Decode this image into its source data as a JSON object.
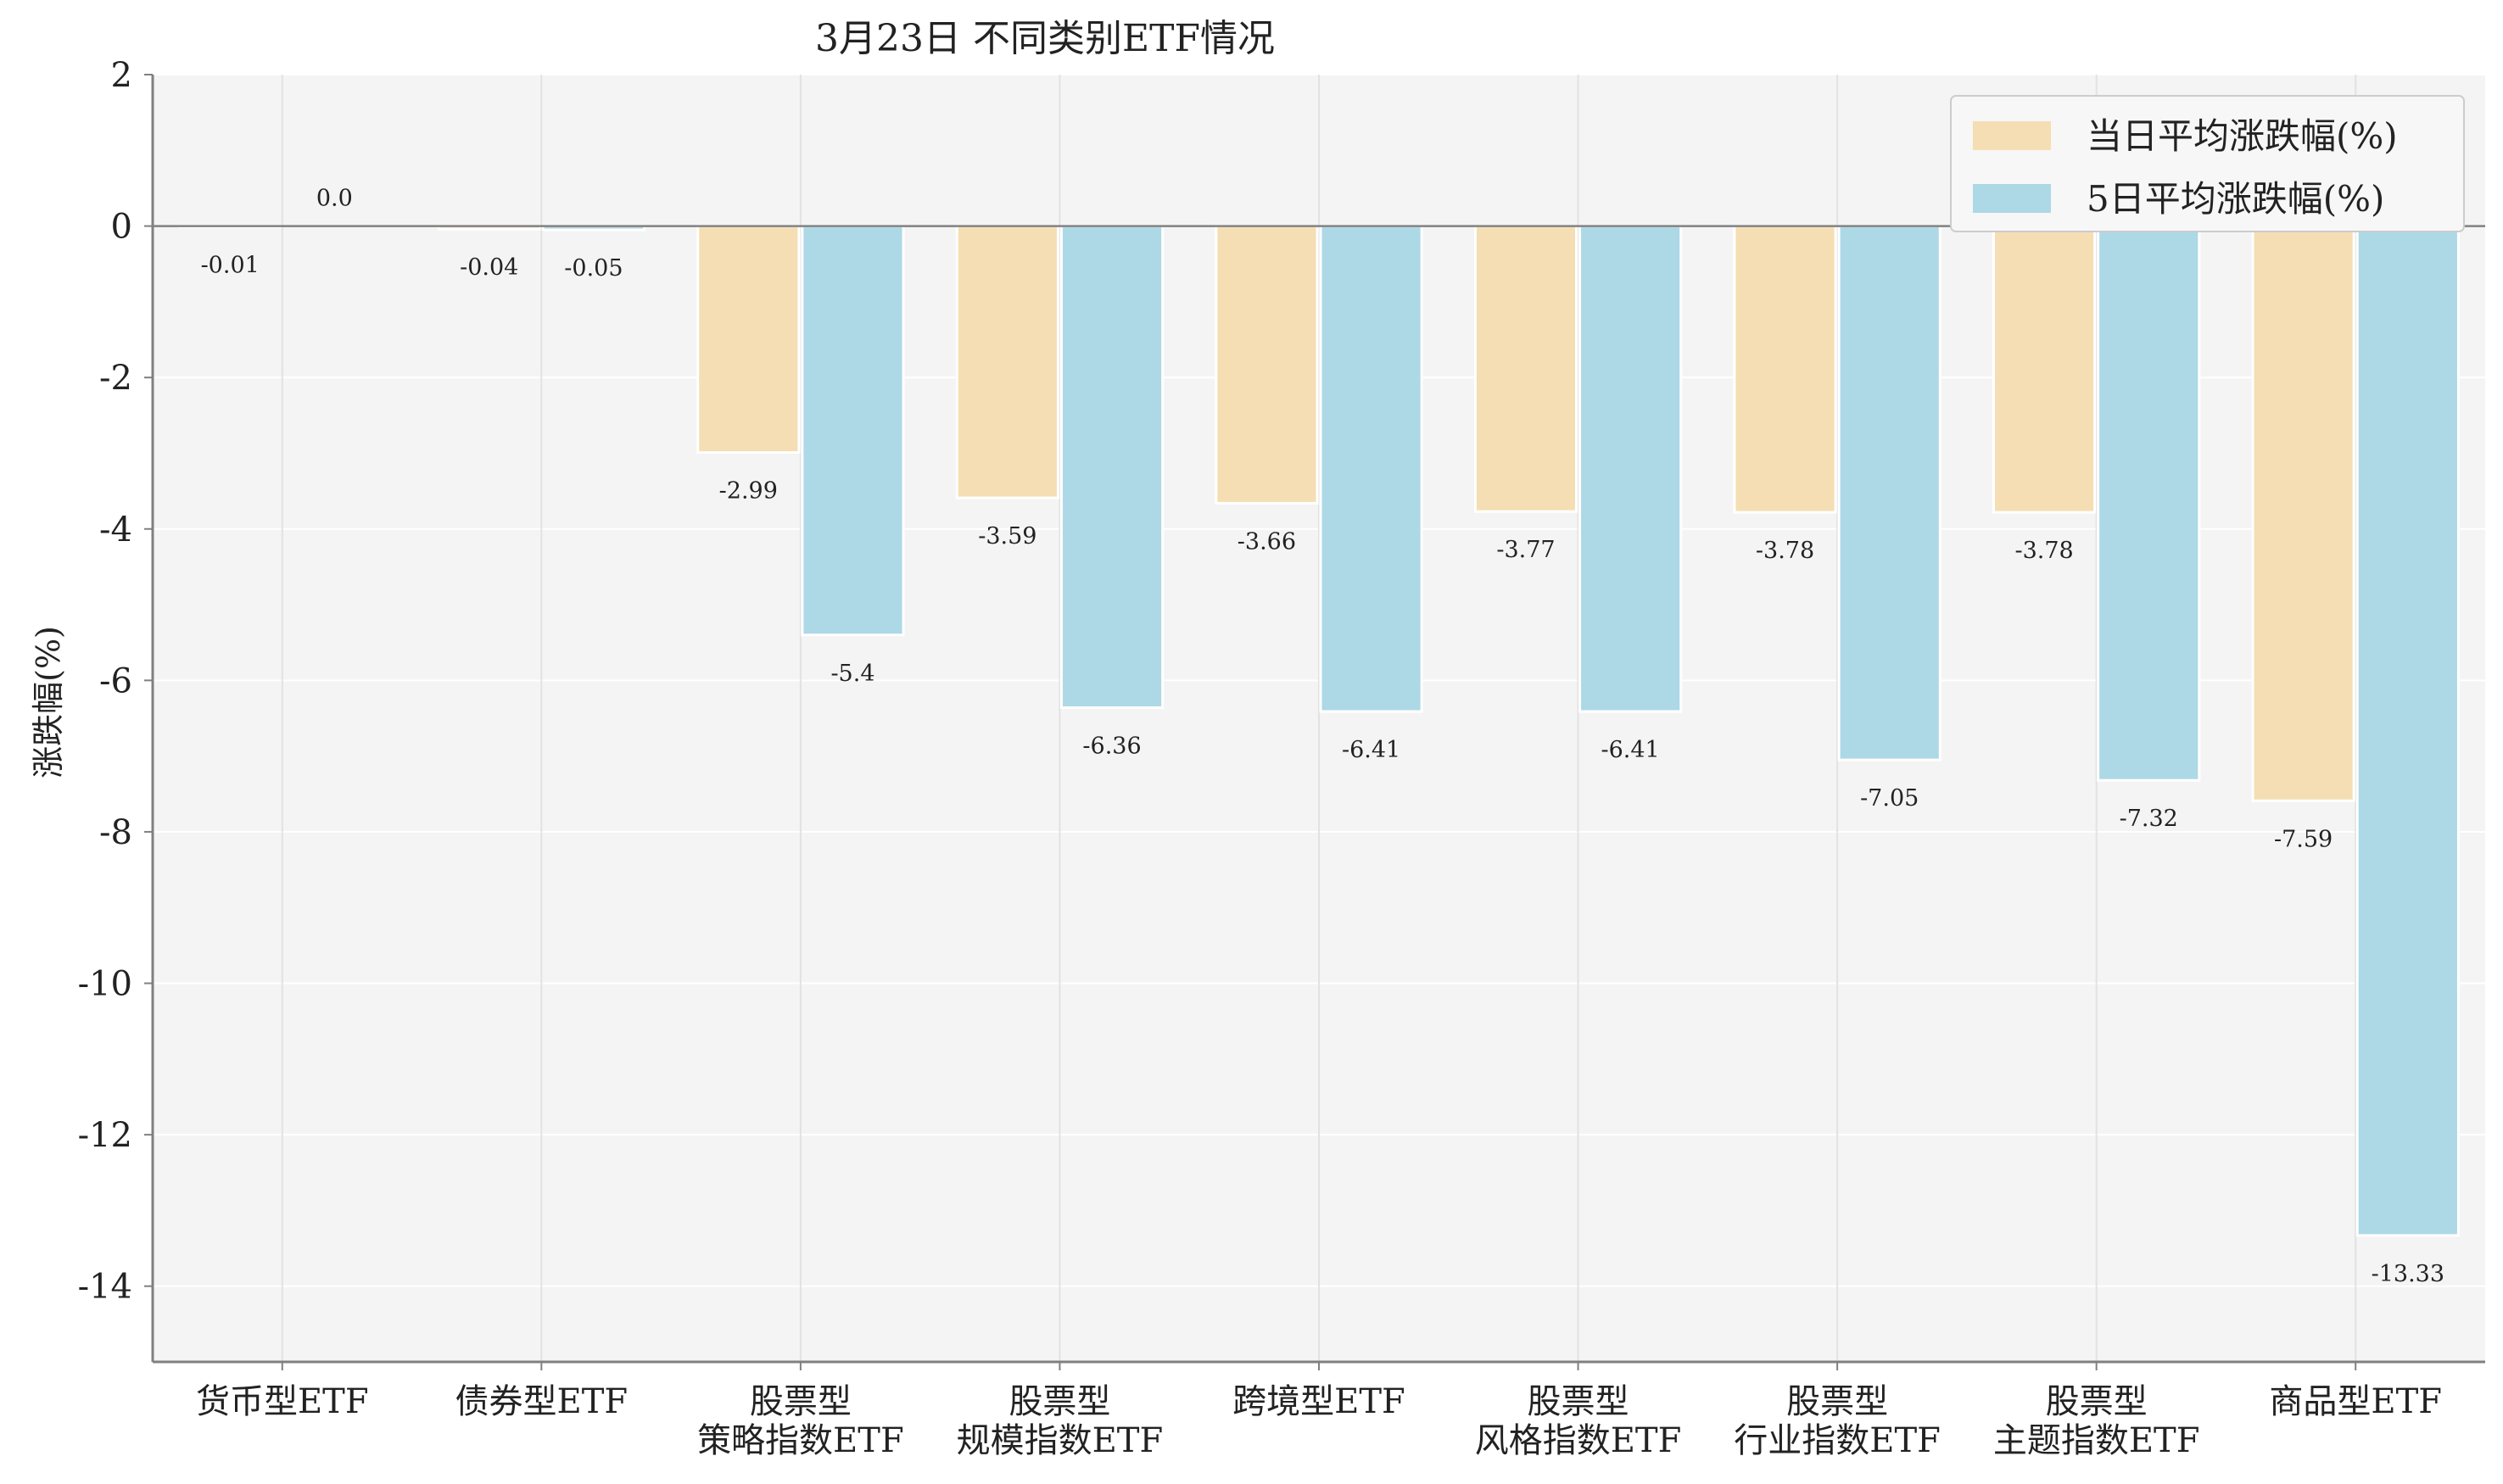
{
  "chart_data": {
    "type": "bar",
    "title": "3月23日 不同类别ETF情况",
    "xlabel": "",
    "ylabel": "涨跌幅(%)",
    "ylim": [
      -15,
      2
    ],
    "yticks": [
      2,
      0,
      -2,
      -4,
      -6,
      -8,
      -10,
      -12,
      -14
    ],
    "grid": true,
    "legend_position": "top-right",
    "categories": [
      [
        "货币型ETF"
      ],
      [
        "债券型ETF"
      ],
      [
        "股票型",
        "策略指数ETF"
      ],
      [
        "股票型",
        "规模指数ETF"
      ],
      [
        "跨境型ETF"
      ],
      [
        "股票型",
        "风格指数ETF"
      ],
      [
        "股票型",
        "行业指数ETF"
      ],
      [
        "股票型",
        "主题指数ETF"
      ],
      [
        "商品型ETF"
      ]
    ],
    "series": [
      {
        "name": "当日平均涨跌幅(%)",
        "color": "#f5deb3",
        "values": [
          -0.01,
          -0.04,
          -2.99,
          -3.59,
          -3.66,
          -3.77,
          -3.78,
          -3.78,
          -7.59
        ],
        "labels": [
          "-0.01",
          "-0.04",
          "-2.99",
          "-3.59",
          "-3.66",
          "-3.77",
          "-3.78",
          "-3.78",
          "-7.59"
        ]
      },
      {
        "name": "5日平均涨跌幅(%)",
        "color": "#add8e6",
        "values": [
          0.0,
          -0.05,
          -5.4,
          -6.36,
          -6.41,
          -6.41,
          -7.05,
          -7.32,
          -13.33
        ],
        "labels": [
          "0.0",
          "-0.05",
          "-5.4",
          "-6.36",
          "-6.41",
          "-6.41",
          "-7.05",
          "-7.32",
          "-13.33"
        ]
      }
    ]
  },
  "colors": {
    "plot_background": "#f4f4f4",
    "grid": "#ffffff",
    "axis": "#808080",
    "bar_edge": "#ffffff"
  }
}
